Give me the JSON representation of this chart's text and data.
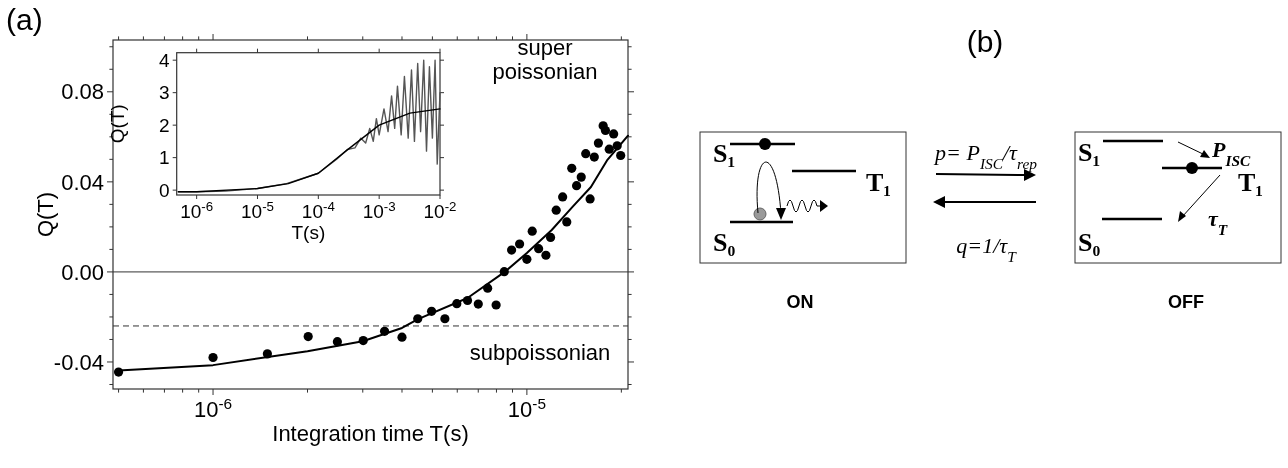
{
  "chart_data": [
    {
      "type": "scatter",
      "title": "(a)",
      "xlabel": "Integration time T(s)",
      "ylabel": "Q(T)",
      "log": "x",
      "xlim": [
        4.8e-07,
        2.1e-05
      ],
      "ylim": [
        -0.052,
        0.103
      ],
      "xticks": [
        {
          "value": 5e-07,
          "label": null
        },
        {
          "value": 6e-07,
          "label": null
        },
        {
          "value": 7e-07,
          "label": null
        },
        {
          "value": 8e-07,
          "label": null
        },
        {
          "value": 9e-07,
          "label": null
        },
        {
          "value": 1e-06,
          "label": "10$^{-6}$"
        },
        {
          "value": 2e-06,
          "label": null
        },
        {
          "value": 3e-06,
          "label": null
        },
        {
          "value": 4e-06,
          "label": null
        },
        {
          "value": 5e-06,
          "label": null
        },
        {
          "value": 6e-06,
          "label": null
        },
        {
          "value": 7e-06,
          "label": null
        },
        {
          "value": 8e-06,
          "label": null
        },
        {
          "value": 9e-06,
          "label": null
        },
        {
          "value": 1e-05,
          "label": "10$^{-5}$"
        },
        {
          "value": 2e-05,
          "label": null
        }
      ],
      "yticks": [
        {
          "value": -0.05,
          "label": null
        },
        -0.04,
        {
          "value": -0.03,
          "label": null
        },
        {
          "value": -0.02,
          "label": null
        },
        {
          "value": -0.01,
          "label": null
        },
        {
          "value": 0,
          "label": "0.00"
        },
        {
          "value": 0.01,
          "label": null
        },
        {
          "value": 0.02,
          "label": null
        },
        {
          "value": 0.03,
          "label": null
        },
        0.04,
        {
          "value": 0.05,
          "label": null
        },
        {
          "value": 0.06,
          "label": null
        },
        {
          "value": 0.07,
          "label": null
        },
        0.08,
        {
          "value": 0.09,
          "label": null
        },
        {
          "value": 0.1,
          "label": null
        }
      ],
      "ref_lines": [
        {
          "axis": "y",
          "value": 0,
          "line_style": "solid",
          "color": "#333333"
        },
        {
          "axis": "y",
          "value": -0.024,
          "line_style": "dashed",
          "color": "#333333"
        }
      ],
      "annotations": [
        "super poissonian",
        "subpoissonian"
      ],
      "series": [
        {
          "type": "scatter",
          "marker": "circle",
          "color": "#000000",
          "x": [
            5e-07,
            1e-06,
            1.49e-06,
            2.01e-06,
            2.49e-06,
            3.01e-06,
            3.52e-06,
            4e-06,
            4.49e-06,
            4.97e-06,
            5.48e-06,
            5.98e-06,
            6.47e-06,
            7e-06,
            7.5e-06,
            7.98e-06,
            8.47e-06,
            8.94e-06,
            9.48e-06,
            1e-05,
            1.04e-05,
            1.09e-05,
            1.15e-05,
            1.19e-05,
            1.24e-05,
            1.3e-05,
            1.34e-05,
            1.39e-05,
            1.44e-05,
            1.49e-05,
            1.54e-05,
            1.59e-05,
            1.64e-05,
            1.69e-05,
            1.75e-05,
            1.78e-05,
            1.83e-05,
            1.89e-05,
            1.94e-05,
            1.99e-05
          ],
          "values": [
            -0.0445,
            -0.038,
            -0.0364,
            -0.0287,
            -0.031,
            -0.0305,
            -0.0264,
            -0.029,
            -0.0208,
            -0.0175,
            -0.0208,
            -0.0141,
            -0.0127,
            -0.0143,
            -0.0072,
            -0.0147,
            0.0001,
            0.0097,
            0.0124,
            0.0056,
            0.0181,
            0.0103,
            0.0074,
            0.0153,
            0.0274,
            0.0333,
            0.0222,
            0.046,
            0.0383,
            0.0421,
            0.0525,
            0.0324,
            0.051,
            0.0572,
            0.0649,
            0.0628,
            0.0545,
            0.0613,
            0.056,
            0.0517
          ]
        },
        {
          "type": "line",
          "color": "#000000",
          "x": [
            5e-07,
            1e-06,
            2e-06,
            3e-06,
            4e-06,
            4.5e-06,
            6.47e-06,
            8.5e-06,
            1e-05,
            1.2e-05,
            1.4e-05,
            1.6e-05,
            1.8e-05,
            2.1e-05
          ],
          "values": [
            -0.0438,
            -0.0414,
            -0.0352,
            -0.0308,
            -0.0249,
            -0.021,
            -0.0116,
            0.0,
            0.0084,
            0.0186,
            0.029,
            0.0377,
            0.0495,
            0.0605
          ]
        }
      ]
    },
    {
      "type": "line",
      "xlabel": "T(s)",
      "ylabel": "Q(T)",
      "log": "x",
      "xlim": [
        4.7e-07,
        0.01
      ],
      "ylim": [
        -0.15,
        4.23
      ],
      "xticks": [
        {
          "value": 1e-06,
          "label": "10$^{-6}$"
        },
        {
          "value": 1e-05,
          "label": "10$^{-5}$"
        },
        {
          "value": 0.0001,
          "label": "10$^{-4}$"
        },
        {
          "value": 0.001,
          "label": "10$^{-3}$"
        },
        {
          "value": 0.01,
          "label": "10$^{-2}$"
        }
      ],
      "yticks": [
        0,
        1,
        2,
        3,
        4
      ],
      "series": [
        {
          "type": "line",
          "color": "#555555",
          "x": [
            5e-07,
            1e-06,
            3e-06,
            1e-05,
            3e-05,
            0.0001,
            0.0002,
            0.0003,
            0.0004,
            0.0005,
            0.0006,
            0.0007,
            0.0008,
            0.0009,
            0.001,
            0.0012,
            0.0014,
            0.0016,
            0.0018,
            0.002,
            0.0023,
            0.0026,
            0.003,
            0.0034,
            0.0038,
            0.0043,
            0.0048,
            0.0054,
            0.006,
            0.0067,
            0.0075,
            0.0083,
            0.009,
            0.01
          ],
          "values": [
            -0.05,
            -0.05,
            -0.03,
            0.05,
            0.2,
            0.52,
            0.95,
            1.25,
            1.3,
            1.6,
            1.45,
            1.9,
            1.5,
            2.2,
            1.7,
            2.5,
            1.8,
            2.9,
            1.9,
            3.2,
            1.7,
            3.5,
            1.6,
            3.7,
            1.5,
            3.9,
            1.8,
            4.0,
            1.2,
            3.8,
            1.6,
            4.0,
            0.8,
            3.0
          ]
        },
        {
          "type": "line",
          "color": "#000000",
          "x": [
            5e-07,
            1e-06,
            1e-05,
            3.2e-05,
            0.0001,
            0.0003,
            0.001,
            0.0032,
            0.01
          ],
          "values": [
            -0.05,
            -0.05,
            0.05,
            0.2,
            0.52,
            1.24,
            2.0,
            2.37,
            2.5
          ]
        }
      ]
    },
    {
      "type": "other",
      "title": "(b)",
      "annotations": [
        "S₁",
        "S₀",
        "T₁",
        "p= P$_{ISC}$/τ$_{rep}$",
        "q=1/τ$_{T}$",
        "S₁",
        "T₁",
        "S₀",
        "P$_{ISC}$",
        "τ$_{T}$",
        "ON",
        "OFF"
      ]
    }
  ]
}
